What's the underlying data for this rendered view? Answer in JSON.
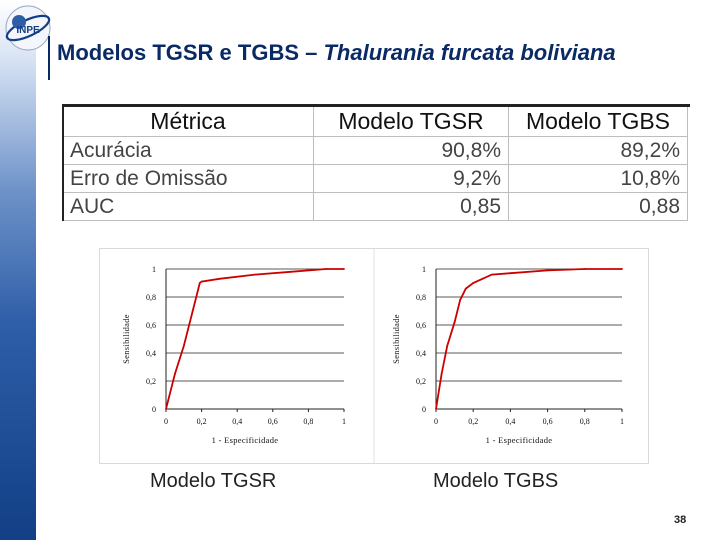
{
  "header": {
    "logo_text": "INPE",
    "title_main": "Modelos TGSR e TGBS – ",
    "title_species": "Thalurania furcata boliviana"
  },
  "table": {
    "headers": [
      "Métrica",
      "Modelo TGSR",
      "Modelo TGBS"
    ],
    "rows": [
      [
        "Acurácia",
        "90,8%",
        "89,2%"
      ],
      [
        "Erro de Omissão",
        "9,2%",
        "10,8%"
      ],
      [
        "AUC",
        "0,85",
        "0,88"
      ]
    ]
  },
  "chart_data": [
    {
      "type": "line",
      "xlabel": "1 - Especificidade",
      "ylabel": "Sensibilidade",
      "xlim": [
        0,
        1
      ],
      "ylim": [
        0,
        1
      ],
      "x_ticks": [
        "0",
        "0,2",
        "0,4",
        "0,6",
        "0,8",
        "1"
      ],
      "y_ticks": [
        "0",
        "0,2",
        "0,4",
        "0,6",
        "0,8",
        "1"
      ],
      "series": [
        {
          "x": [
            0,
            0.05,
            0.1,
            0.15,
            0.19,
            0.2,
            0.3,
            0.5,
            0.7,
            0.9,
            1.0
          ],
          "y": [
            0,
            0.25,
            0.45,
            0.7,
            0.9,
            0.91,
            0.93,
            0.96,
            0.98,
            1.0,
            1.0
          ],
          "color": "#cc0000"
        }
      ]
    },
    {
      "type": "line",
      "xlabel": "1 - Especificidade",
      "ylabel": "Sensibilidade",
      "xlim": [
        0,
        1
      ],
      "ylim": [
        0,
        1
      ],
      "x_ticks": [
        "0",
        "0,2",
        "0,4",
        "0,6",
        "0,8",
        "1"
      ],
      "y_ticks": [
        "0",
        "0,2",
        "0,4",
        "0,6",
        "0,8",
        "1"
      ],
      "series": [
        {
          "x": [
            0,
            0.03,
            0.06,
            0.1,
            0.13,
            0.16,
            0.2,
            0.25,
            0.3,
            0.4,
            0.6,
            0.8,
            1.0
          ],
          "y": [
            0,
            0.25,
            0.45,
            0.62,
            0.78,
            0.86,
            0.9,
            0.93,
            0.96,
            0.97,
            0.99,
            1.0,
            1.0
          ],
          "color": "#cc0000"
        }
      ]
    }
  ],
  "captions": [
    "Modelo TGSR",
    "Modelo TGBS"
  ],
  "page_number": "38",
  "colors": {
    "title": "#0a2a66",
    "roc_line": "#cc0000",
    "sidebar": "#2e5ea8"
  }
}
